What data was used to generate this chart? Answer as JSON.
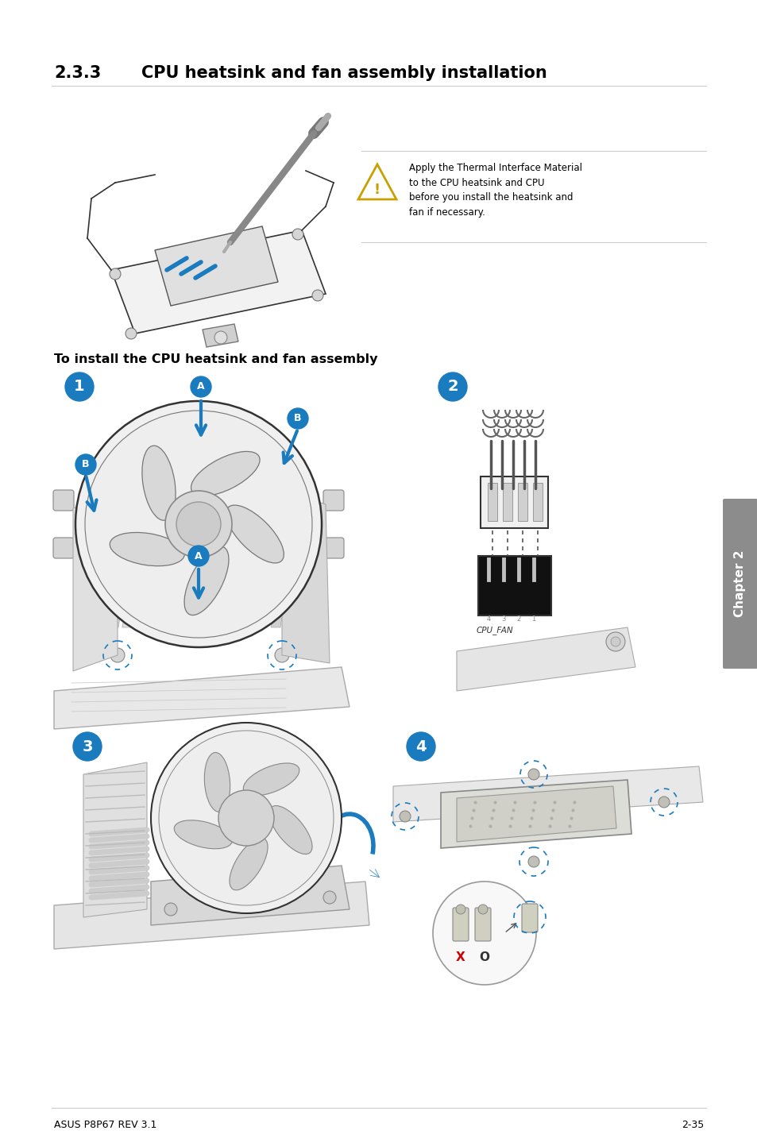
{
  "title_section": "2.3.3",
  "title_main": "CPU heatsink and fan assembly installation",
  "subtitle": "To install the CPU heatsink and fan assembly",
  "warning_text": "Apply the Thermal Interface Material\nto the CPU heatsink and CPU\nbefore you install the heatsink and\nfan if necessary.",
  "footer_left": "ASUS P8P67 REV 3.1",
  "footer_right": "2-35",
  "chapter_label": "Chapter 2",
  "bg_color": "#ffffff",
  "text_color": "#000000",
  "blue_color": "#1a7bbf",
  "tab_color": "#8c8c8c",
  "line_color": "#333333",
  "light_gray": "#e8e8e8",
  "mid_gray": "#bbbbbb",
  "warn_color": "#c8a000"
}
